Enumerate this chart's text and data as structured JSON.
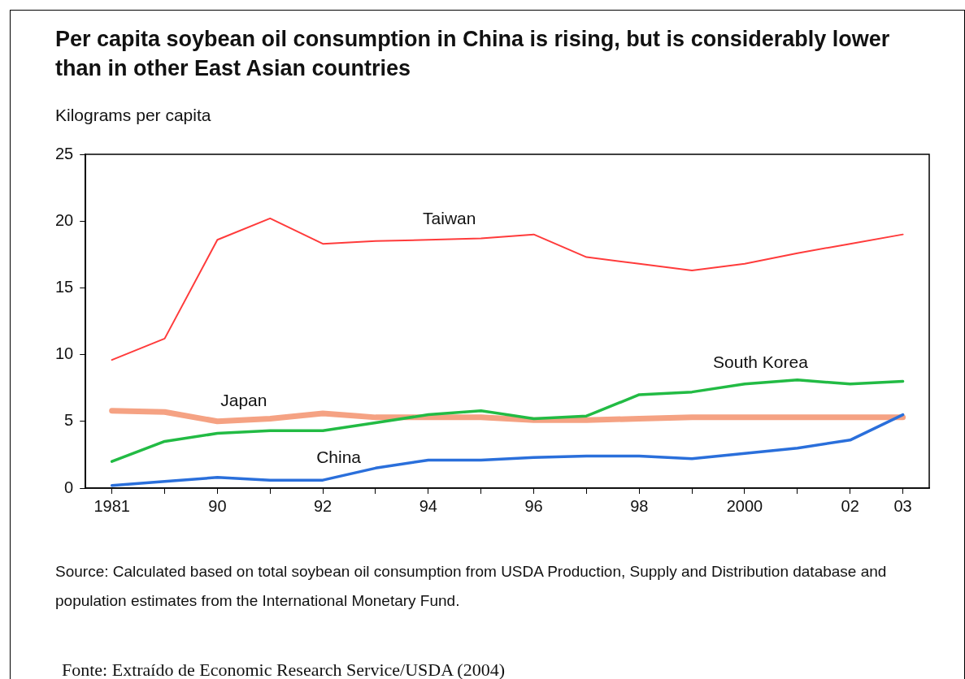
{
  "chart_data": {
    "type": "line",
    "title": "Per capita soybean oil consumption in China is rising, but is considerably lower than  in other East Asian countries",
    "ylabel": "Kilograms per capita",
    "categories": [
      "1981",
      null,
      "90",
      null,
      "92",
      null,
      "94",
      null,
      "96",
      null,
      "98",
      null,
      "2000",
      null,
      "02",
      "03"
    ],
    "series": [
      {
        "name": "Taiwan",
        "color": "#ff3b3b",
        "values": [
          9.6,
          11.2,
          18.6,
          20.2,
          18.3,
          18.5,
          18.6,
          18.7,
          19.0,
          17.3,
          16.8,
          16.3,
          16.8,
          17.6,
          18.3,
          19.0
        ]
      },
      {
        "name": "South Korea",
        "color": "#22bb44",
        "values": [
          2.0,
          3.5,
          4.1,
          4.3,
          4.3,
          4.9,
          5.5,
          5.8,
          5.2,
          5.4,
          7.0,
          7.2,
          7.8,
          8.1,
          7.8,
          8.0
        ]
      },
      {
        "name": "Japan",
        "color": "#f5a283",
        "values": [
          5.8,
          5.7,
          5.0,
          5.2,
          5.6,
          5.3,
          5.3,
          5.3,
          5.1,
          5.1,
          5.2,
          5.3,
          5.3,
          5.3,
          5.3,
          5.3
        ]
      },
      {
        "name": "China",
        "color": "#2a6fdb",
        "values": [
          0.2,
          0.5,
          0.8,
          0.6,
          0.6,
          1.5,
          2.1,
          2.1,
          2.3,
          2.4,
          2.4,
          2.2,
          2.6,
          3.0,
          3.6,
          5.5
        ]
      }
    ],
    "ylim": [
      0,
      25
    ],
    "yticks": [
      0,
      5,
      10,
      15,
      20,
      25
    ],
    "grid": false,
    "legend": false,
    "marker": "none",
    "line_style": "solid",
    "annotations": [
      "Source: Calculated based on total soybean oil consumption from USDA Production, Supply and Distribution database and population estimates from the International Monetary Fund.",
      "Fonte: Extraído de Economic Research Service/USDA (2004)"
    ]
  }
}
